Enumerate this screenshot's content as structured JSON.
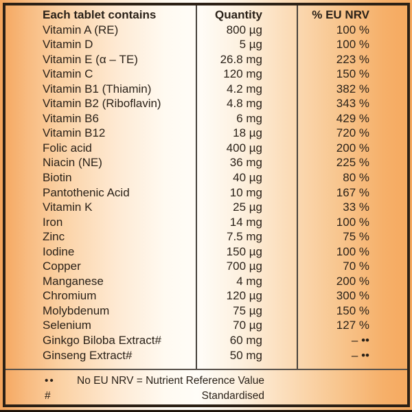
{
  "label": {
    "headers": [
      "Each tablet contains",
      "Quantity",
      "% EU NRV"
    ],
    "rows": [
      {
        "name": "Vitamin A (RE)",
        "quantity": "800 µg",
        "nrv": "100 %"
      },
      {
        "name": "Vitamin D",
        "quantity": "5 µg",
        "nrv": "100 %"
      },
      {
        "name": "Vitamin E (α – TE)",
        "quantity": "26.8 mg",
        "nrv": "223 %"
      },
      {
        "name": "Vitamin C",
        "quantity": "120 mg",
        "nrv": "150 %"
      },
      {
        "name": "Vitamin B1 (Thiamin)",
        "quantity": "4.2 mg",
        "nrv": "382 %"
      },
      {
        "name": "Vitamin B2 (Riboflavin)",
        "quantity": "4.8 mg",
        "nrv": "343 %"
      },
      {
        "name": "Vitamin B6",
        "quantity": "6 mg",
        "nrv": "429 %"
      },
      {
        "name": "Vitamin B12",
        "quantity": "18 µg",
        "nrv": "720 %"
      },
      {
        "name": "Folic acid",
        "quantity": "400 µg",
        "nrv": "200 %"
      },
      {
        "name": "Niacin (NE)",
        "quantity": "36 mg",
        "nrv": "225 %"
      },
      {
        "name": "Biotin",
        "quantity": "40 µg",
        "nrv": "80 %"
      },
      {
        "name": "Pantothenic Acid",
        "quantity": "10 mg",
        "nrv": "167 %"
      },
      {
        "name": "Vitamin K",
        "quantity": "25 µg",
        "nrv": "33 %"
      },
      {
        "name": "Iron",
        "quantity": "14 mg",
        "nrv": "100 %"
      },
      {
        "name": "Zinc",
        "quantity": "7.5 mg",
        "nrv": "75 %"
      },
      {
        "name": "Iodine",
        "quantity": "150 µg",
        "nrv": "100 %"
      },
      {
        "name": "Copper",
        "quantity": "700 µg",
        "nrv": "70 %"
      },
      {
        "name": "Manganese",
        "quantity": "4 mg",
        "nrv": "200 %"
      },
      {
        "name": "Chromium",
        "quantity": "120 µg",
        "nrv": "300 %"
      },
      {
        "name": "Molybdenum",
        "quantity": "75 µg",
        "nrv": "150 %"
      },
      {
        "name": "Selenium",
        "quantity": "70 µg",
        "nrv": "127 %"
      },
      {
        "name": "Ginkgo Biloba Extract#",
        "quantity": "60 mg",
        "nrv": "– ••"
      },
      {
        "name": "Ginseng Extract#",
        "quantity": "50 mg",
        "nrv": "– ••"
      }
    ],
    "footnotes": [
      {
        "symbol": "••",
        "text": "No EU NRV = Nutrient Reference Value"
      },
      {
        "symbol": "#",
        "text": "Standardised"
      }
    ],
    "colors": {
      "background_orange": "#f5a85e",
      "background_center": "#fffaf1",
      "frame_border": "#2b2015",
      "divider": "#45403a",
      "text": "#2a2118"
    }
  }
}
